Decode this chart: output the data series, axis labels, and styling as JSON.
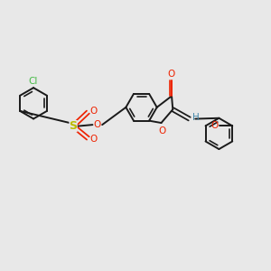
{
  "background_color": "#e8e8e8",
  "bond_color": "#1a1a1a",
  "bond_width": 1.4,
  "cl_color": "#44bb44",
  "o_color": "#ee2200",
  "s_color": "#bbbb00",
  "h_color": "#4488aa",
  "figsize": [
    3.0,
    3.0
  ],
  "dpi": 100,
  "xlim": [
    -4.5,
    5.5
  ],
  "ylim": [
    -2.8,
    3.2
  ]
}
